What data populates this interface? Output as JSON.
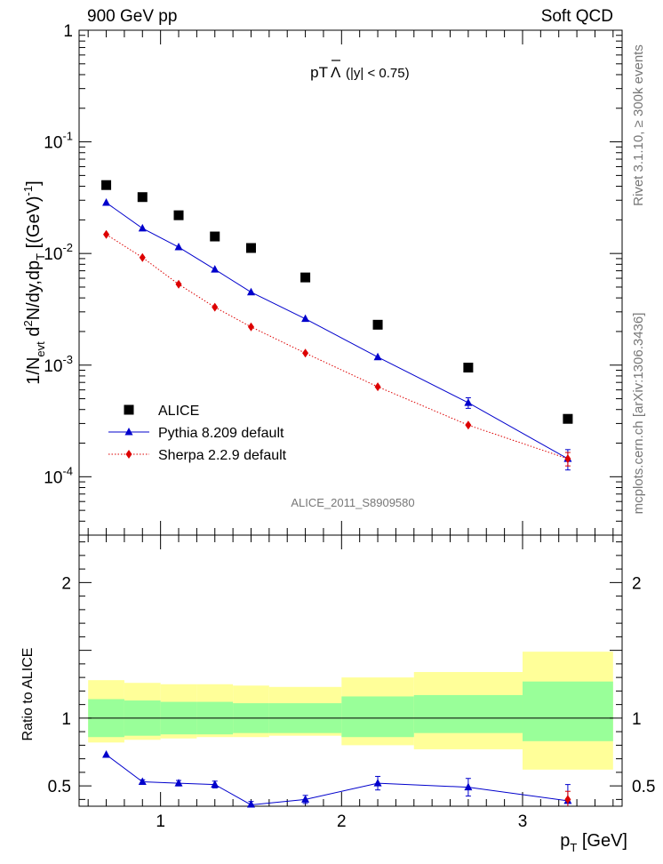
{
  "header": {
    "left_label": "900 GeV pp",
    "right_label": "Soft QCD"
  },
  "side_labels": {
    "rivet": "Rivet 3.1.10, ≥ 300k events",
    "mcplots": "mcplots.cern.ch [arXiv:1306.3436]"
  },
  "chart_data": [
    {
      "type": "scatter",
      "panel": "main",
      "title_prefix": "pT",
      "title_particle": "Λ",
      "title_suffix": "(|y| < 0.75)",
      "ylabel": "1/N_evt d²N/dy,dp_T [(GeV)^-1]",
      "yscale": "log",
      "ylim": [
        3e-05,
        1
      ],
      "xlim": [
        0.55,
        3.55
      ],
      "y_tick_labels": [
        "10^-4",
        "10^-3",
        "10^-2",
        "10^-1",
        "1"
      ],
      "analysis_id": "ALICE_2011_S8909580",
      "x": [
        0.7,
        0.9,
        1.1,
        1.3,
        1.5,
        1.8,
        2.2,
        2.7,
        3.25
      ],
      "series": [
        {
          "name": "ALICE",
          "style": "data",
          "color": "#000000",
          "marker": "square",
          "values": [
            0.041,
            0.032,
            0.022,
            0.0142,
            0.0112,
            0.0061,
            0.0023,
            0.00095,
            0.00033
          ],
          "errors": [
            0,
            0,
            0,
            0,
            0,
            0,
            0,
            0,
            0
          ]
        },
        {
          "name": "Pythia 8.209 default",
          "style": "solid",
          "color": "#0000cc",
          "marker": "triangle",
          "values": [
            0.0285,
            0.0168,
            0.0114,
            0.0072,
            0.0045,
            0.0026,
            0.00118,
            0.00046,
            0.000145
          ],
          "errors": [
            0,
            0,
            0,
            0,
            0,
            0,
            0,
            5e-05,
            3e-05
          ]
        },
        {
          "name": "Sherpa 2.2.9 default",
          "style": "dotted",
          "color": "#dd0000",
          "marker": "diamond",
          "values": [
            0.0148,
            0.0092,
            0.0053,
            0.0033,
            0.0022,
            0.00128,
            0.00064,
            0.00029,
            0.000145
          ],
          "errors": [
            0,
            0,
            0,
            0,
            0,
            0,
            0,
            0,
            2e-05
          ]
        }
      ]
    },
    {
      "type": "line",
      "panel": "ratio",
      "xlabel": "p_T [GeV]",
      "ylabel": "Ratio to ALICE",
      "ylim": [
        0.35,
        2.35
      ],
      "xlim": [
        0.55,
        3.55
      ],
      "x_tick_labels": [
        "1",
        "2",
        "3"
      ],
      "y_tick_labels": [
        "0.5",
        "1",
        "2"
      ],
      "reference_line": 1,
      "uncertainty_bands": [
        {
          "x0": 0.6,
          "x1": 0.8,
          "inner": [
            0.86,
            1.14
          ],
          "outer": [
            0.82,
            1.28
          ]
        },
        {
          "x0": 0.8,
          "x1": 1.0,
          "inner": [
            0.87,
            1.13
          ],
          "outer": [
            0.84,
            1.26
          ]
        },
        {
          "x0": 1.0,
          "x1": 1.2,
          "inner": [
            0.88,
            1.12
          ],
          "outer": [
            0.85,
            1.25
          ]
        },
        {
          "x0": 1.2,
          "x1": 1.4,
          "inner": [
            0.88,
            1.12
          ],
          "outer": [
            0.86,
            1.25
          ]
        },
        {
          "x0": 1.4,
          "x1": 1.6,
          "inner": [
            0.89,
            1.11
          ],
          "outer": [
            0.86,
            1.24
          ]
        },
        {
          "x0": 1.6,
          "x1": 2.0,
          "inner": [
            0.89,
            1.11
          ],
          "outer": [
            0.87,
            1.23
          ]
        },
        {
          "x0": 2.0,
          "x1": 2.4,
          "inner": [
            0.86,
            1.16
          ],
          "outer": [
            0.8,
            1.3
          ]
        },
        {
          "x0": 2.4,
          "x1": 3.0,
          "inner": [
            0.89,
            1.17
          ],
          "outer": [
            0.77,
            1.34
          ]
        },
        {
          "x0": 3.0,
          "x1": 3.5,
          "inner": [
            0.83,
            1.27
          ],
          "outer": [
            0.62,
            1.49
          ]
        }
      ],
      "x": [
        0.7,
        0.9,
        1.1,
        1.3,
        1.5,
        1.8,
        2.2,
        2.7,
        3.25
      ],
      "series": [
        {
          "name": "Pythia 8.209 default",
          "style": "solid",
          "color": "#0000cc",
          "marker": "triangle",
          "values": [
            0.73,
            0.53,
            0.52,
            0.51,
            0.36,
            0.4,
            0.52,
            0.49,
            0.39
          ],
          "errors": [
            0,
            0.015,
            0.02,
            0.025,
            0.025,
            0.03,
            0.05,
            0.065,
            0.12
          ]
        },
        {
          "name": "Sherpa 2.2.9 default",
          "style": "dotted",
          "color": "#dd0000",
          "marker": "diamond",
          "values": [
            null,
            null,
            null,
            null,
            null,
            null,
            null,
            null,
            0.4
          ],
          "errors": [
            0,
            0,
            0,
            0,
            0,
            0,
            0,
            0,
            0.06
          ]
        }
      ]
    }
  ]
}
